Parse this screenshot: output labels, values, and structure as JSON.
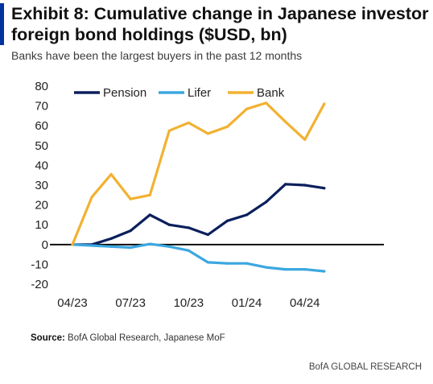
{
  "header": {
    "title": "Exhibit 8: Cumulative change in Japanese investor foreign bond holdings ($USD, bn)",
    "subtitle": "Banks have been the largest buyers in the past 12 months"
  },
  "footer": {
    "source_label": "Source:",
    "source_text": " BofA Global Research, Japanese MoF",
    "brand": "BofA GLOBAL RESEARCH"
  },
  "chart_data": {
    "type": "line",
    "title": "",
    "xlabel": "",
    "ylabel": "",
    "ylim": [
      -20,
      80
    ],
    "yticks": [
      -20,
      -10,
      0,
      10,
      20,
      30,
      40,
      50,
      60,
      70,
      80
    ],
    "ytick_labels": [
      "-20",
      "-10",
      "0",
      "10",
      "20",
      "30",
      "40",
      "50",
      "60",
      "70",
      "80"
    ],
    "x": [
      0,
      1,
      2,
      3,
      4,
      5,
      6,
      7,
      8,
      9,
      10,
      11,
      12,
      13,
      14,
      15,
      16
    ],
    "xticks": [
      {
        "pos": 0,
        "label": "04/23"
      },
      {
        "pos": 3,
        "label": "07/23"
      },
      {
        "pos": 6,
        "label": "10/23"
      },
      {
        "pos": 9,
        "label": "01/24"
      },
      {
        "pos": 12,
        "label": "04/24"
      }
    ],
    "legend_position": "top",
    "grid": false,
    "series": [
      {
        "name": "Pension",
        "color": "#0b1f5c",
        "values": [
          0,
          0,
          3,
          7,
          15,
          10,
          8.5,
          5,
          12,
          15,
          21.5,
          30.5,
          30,
          28.5,
          null,
          null,
          null
        ]
      },
      {
        "name": "Lifer",
        "color": "#3ba7e0",
        "values": [
          0,
          -0.5,
          -1,
          -1.5,
          0.3,
          -1,
          -3,
          -9,
          -9.5,
          -9.5,
          -11.5,
          -12.5,
          -12.5,
          -13.5,
          null,
          null,
          null
        ]
      },
      {
        "name": "Bank",
        "color": "#f2b132",
        "values": [
          0,
          24,
          35.5,
          23,
          25,
          57.5,
          61.5,
          56,
          59.5,
          68.5,
          71.5,
          62,
          53,
          71,
          null,
          null,
          null
        ]
      }
    ]
  }
}
